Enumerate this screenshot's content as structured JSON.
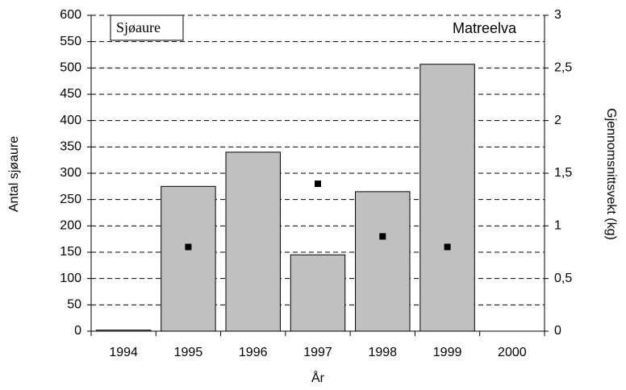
{
  "chart_data": {
    "type": "bar",
    "annotations": [
      "Sjøaure",
      "Matreelva"
    ],
    "xlabel": "År",
    "ylabel": "Antal sjøaure",
    "y2label": "Gjennomsnittsvekt (kg)",
    "categories": [
      "1994",
      "1995",
      "1996",
      "1997",
      "1998",
      "1999",
      "2000"
    ],
    "series": [
      {
        "type": "bar",
        "color": "#c0c0c0",
        "values": [
          2,
          275,
          340,
          145,
          265,
          507,
          null
        ]
      },
      {
        "type": "scatter",
        "axis": "y2",
        "color": "#000000",
        "values": [
          null,
          0.8,
          null,
          1.4,
          0.9,
          0.8,
          null
        ]
      }
    ],
    "ylim": [
      0,
      600
    ],
    "yticks": [
      0,
      50,
      100,
      150,
      200,
      250,
      300,
      350,
      400,
      450,
      500,
      550,
      600
    ],
    "y2lim": [
      0,
      3
    ],
    "y2ticks": [
      0,
      {
        "value": 0.5,
        "label": "0,5"
      },
      1,
      {
        "value": 1.5,
        "label": "1,5"
      },
      2,
      {
        "value": 2.5,
        "label": "2,5"
      },
      3
    ],
    "grid": true
  }
}
